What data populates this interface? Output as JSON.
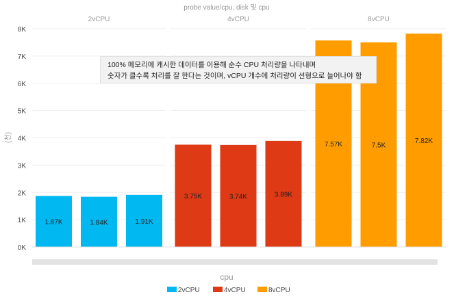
{
  "chart_data": {
    "type": "bar",
    "title": "probe value/cpu, disk 및 cpu",
    "xlabel": "cpu",
    "ylabel": "(천)",
    "ylim": [
      0,
      8000
    ],
    "yticks": [
      {
        "value": 0,
        "label": "0K"
      },
      {
        "value": 1000,
        "label": "1K"
      },
      {
        "value": 2000,
        "label": "2K"
      },
      {
        "value": 3000,
        "label": "3K"
      },
      {
        "value": 4000,
        "label": "4K"
      },
      {
        "value": 5000,
        "label": "5K"
      },
      {
        "value": 6000,
        "label": "6K"
      },
      {
        "value": 7000,
        "label": "7K"
      },
      {
        "value": 8000,
        "label": "8K"
      }
    ],
    "grid": true,
    "legend_position": "bottom",
    "groups": [
      {
        "name": "2vCPU",
        "color": "#01B8F0",
        "values": [
          1870,
          1840,
          1910
        ],
        "labels": [
          "1.87K",
          "1.84K",
          "1.91K"
        ]
      },
      {
        "name": "4vCPU",
        "color": "#DD3A15",
        "values": [
          3750,
          3740,
          3890
        ],
        "labels": [
          "3.75K",
          "3.74K",
          "3.89K"
        ]
      },
      {
        "name": "8vCPU",
        "color": "#FF9D00",
        "values": [
          7570,
          7500,
          7820
        ],
        "labels": [
          "7.57K",
          "7.5K",
          "7.82K"
        ]
      }
    ],
    "annotation": {
      "line1": "100% 메모리에 캐시한 데이터를 이용해 순수 CPU 처리량을 나타내며",
      "line2": "숫자가 클수록 처리를 잘 한다는 것이며, vCPU 개수에 처리량이 선형으로 늘어나야 함"
    },
    "legend": [
      {
        "name": "2vCPU",
        "color": "#01B8F0"
      },
      {
        "name": "4vCPU",
        "color": "#DD3A15"
      },
      {
        "name": "8vCPU",
        "color": "#FF9D00"
      }
    ]
  }
}
